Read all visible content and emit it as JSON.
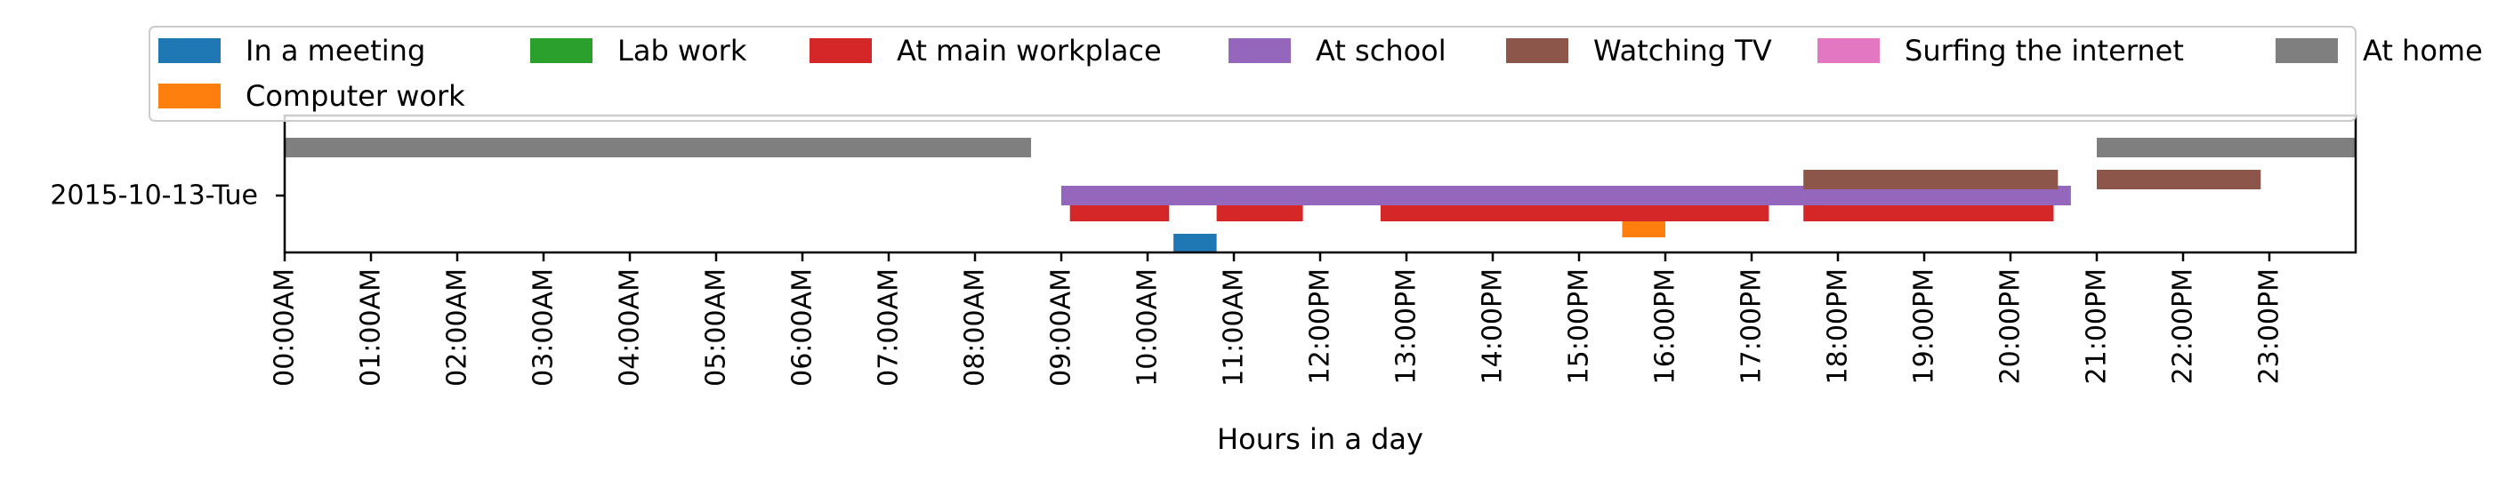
{
  "chart_data": {
    "type": "timeline",
    "xlabel": "Hours in a day",
    "ylabel": "",
    "xlim": [
      0,
      24
    ],
    "x_tick_values": [
      0,
      1,
      2,
      3,
      4,
      5,
      6,
      7,
      8,
      9,
      10,
      11,
      12,
      13,
      14,
      15,
      16,
      17,
      18,
      19,
      20,
      21,
      22,
      23
    ],
    "x_tick_labels": [
      "00:00AM",
      "01:00AM",
      "02:00AM",
      "03:00AM",
      "04:00AM",
      "05:00AM",
      "06:00AM",
      "07:00AM",
      "08:00AM",
      "09:00AM",
      "10:00AM",
      "11:00AM",
      "12:00PM",
      "13:00PM",
      "14:00PM",
      "15:00PM",
      "16:00PM",
      "17:00PM",
      "18:00PM",
      "19:00PM",
      "20:00PM",
      "21:00PM",
      "22:00PM",
      "23:00PM"
    ],
    "y_categories": [
      "2015-10-13-Tue"
    ],
    "grid": false,
    "legend_position": "top",
    "series": [
      {
        "name": "In a meeting",
        "color": "#1f77b4",
        "lane": -3,
        "intervals": [
          [
            10.3,
            10.8
          ]
        ]
      },
      {
        "name": "Computer work",
        "color": "#ff7f0e",
        "lane": -2,
        "intervals": [
          [
            15.5,
            16.0
          ]
        ]
      },
      {
        "name": "Lab work",
        "color": "#2ca02c",
        "lane": 0,
        "intervals": []
      },
      {
        "name": "At main workplace",
        "color": "#d62728",
        "lane": -1,
        "intervals": [
          [
            9.1,
            10.25
          ],
          [
            10.8,
            11.8
          ],
          [
            12.7,
            17.2
          ],
          [
            17.6,
            20.5
          ]
        ]
      },
      {
        "name": "At school",
        "color": "#9467bd",
        "lane": 0,
        "intervals": [
          [
            9.0,
            20.7
          ]
        ]
      },
      {
        "name": "Watching TV",
        "color": "#8c564b",
        "lane": 1,
        "intervals": [
          [
            17.6,
            20.55
          ],
          [
            21.0,
            22.9
          ]
        ]
      },
      {
        "name": "Surfing the internet",
        "color": "#e377c2",
        "lane": 0,
        "intervals": []
      },
      {
        "name": "At home",
        "color": "#7f7f7f",
        "lane": 3,
        "intervals": [
          [
            0.0,
            8.65
          ],
          [
            21.0,
            24.0
          ]
        ]
      }
    ]
  }
}
